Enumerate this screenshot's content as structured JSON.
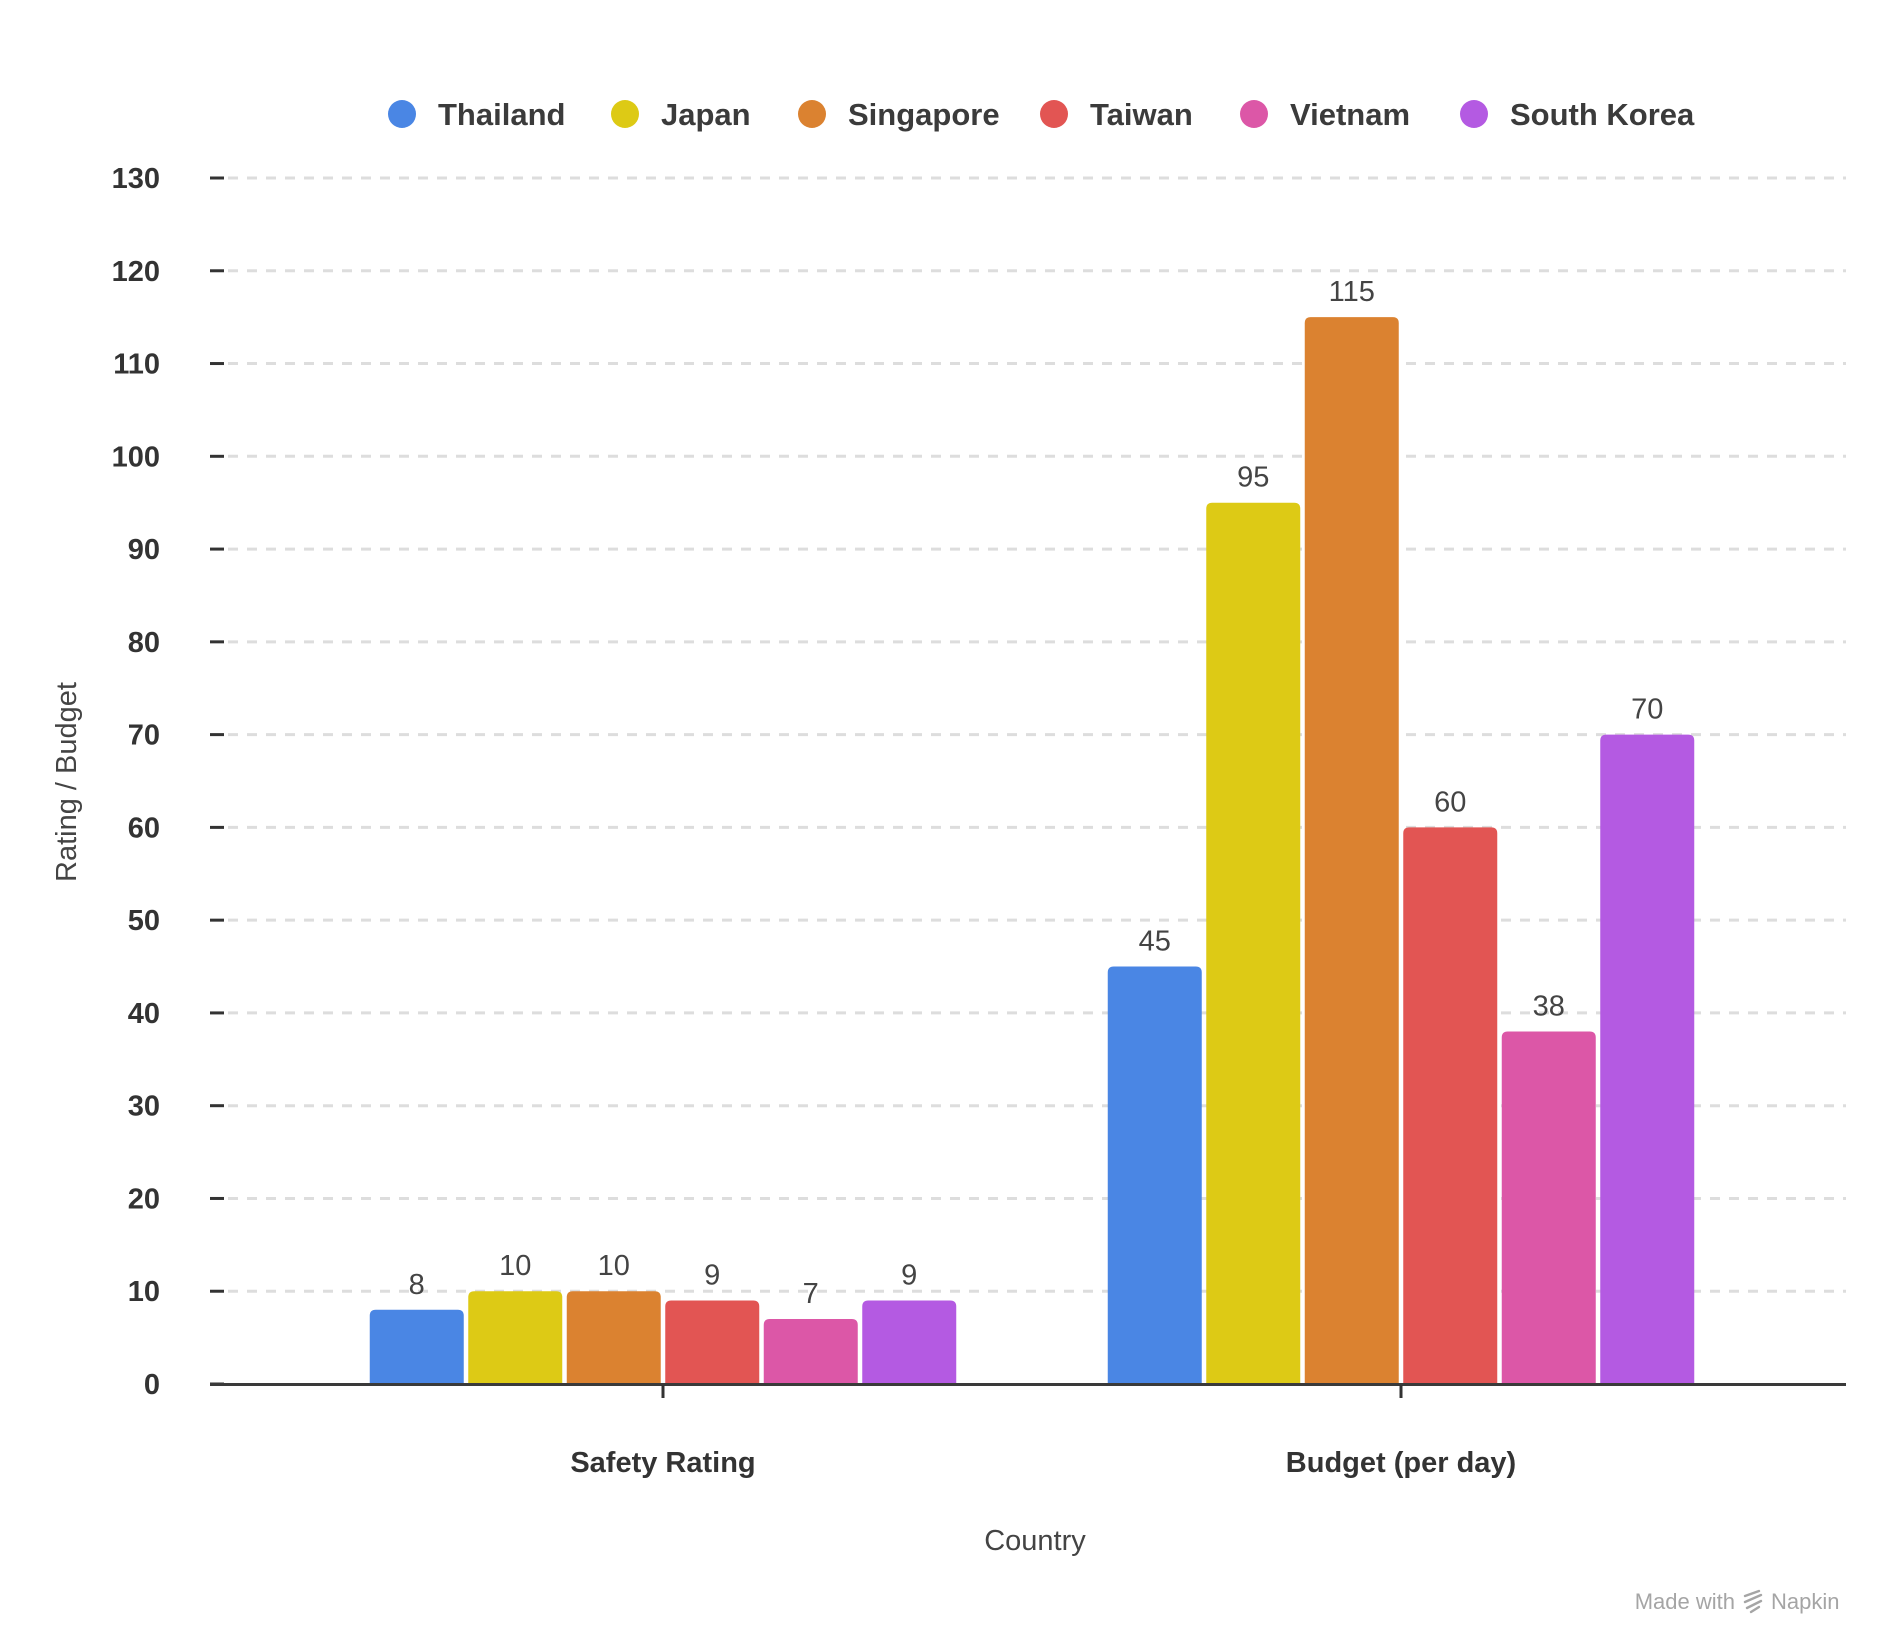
{
  "chart_data": {
    "type": "bar",
    "categories": [
      "Safety Rating",
      "Budget (per day)"
    ],
    "series": [
      {
        "name": "Thailand",
        "color": "#4a86e4",
        "values": [
          8,
          45
        ]
      },
      {
        "name": "Japan",
        "color": "#ddca15",
        "values": [
          10,
          95
        ]
      },
      {
        "name": "Singapore",
        "color": "#db8230",
        "values": [
          10,
          115
        ]
      },
      {
        "name": "Taiwan",
        "color": "#e25553",
        "values": [
          9,
          60
        ]
      },
      {
        "name": "Vietnam",
        "color": "#dc57a7",
        "values": [
          7,
          38
        ]
      },
      {
        "name": "South Korea",
        "color": "#b45ae2",
        "values": [
          9,
          70
        ]
      }
    ],
    "xlabel": "Country",
    "ylabel": "Rating / Budget",
    "ylim": [
      0,
      130
    ],
    "yticks": [
      0,
      10,
      20,
      30,
      40,
      50,
      60,
      70,
      80,
      90,
      100,
      110,
      120,
      130
    ],
    "grid": true,
    "legend_position": "top"
  },
  "watermark": {
    "prefix": "Made with",
    "brand": "Napkin"
  }
}
